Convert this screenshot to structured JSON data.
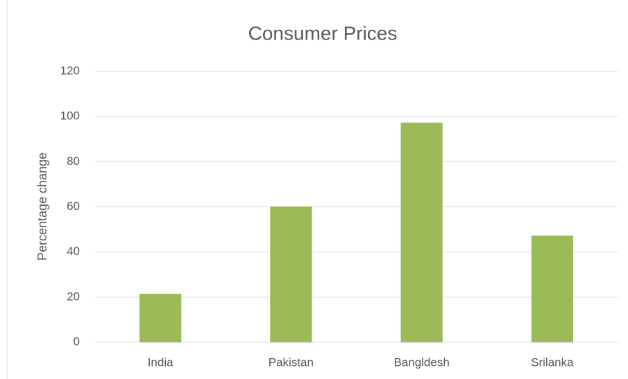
{
  "chart_data": {
    "type": "bar",
    "title": "Consumer Prices",
    "y_label": "Percentage change",
    "categories": [
      "India",
      "Pakistan",
      "Bangldesh",
      "Srilanka"
    ],
    "values": [
      21.5,
      60.2,
      97.3,
      47.3
    ],
    "color": "#9bbb59",
    "ylim": [
      0,
      120
    ],
    "yticks": [
      0,
      20,
      40,
      60,
      80,
      100,
      120
    ],
    "grid": true
  }
}
